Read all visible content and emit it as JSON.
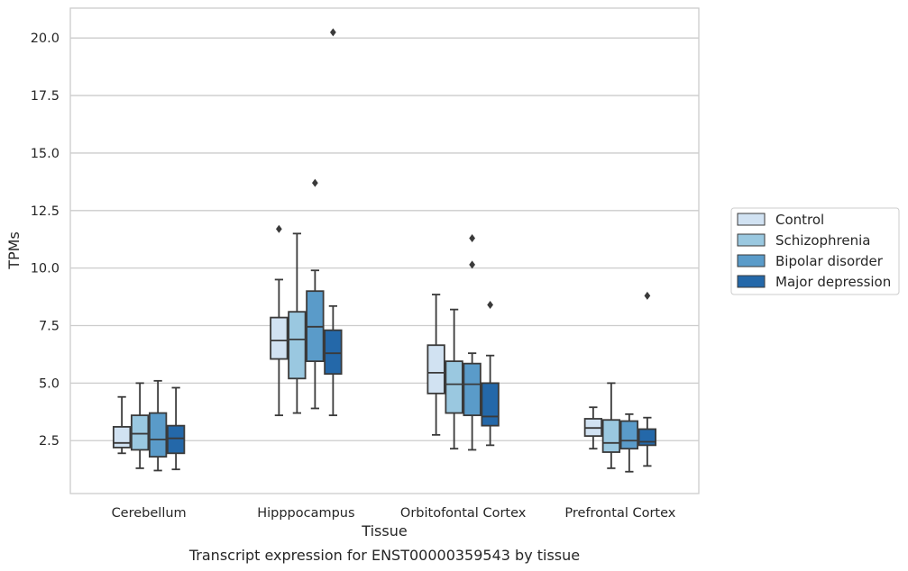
{
  "chart_data": {
    "type": "box",
    "title": "",
    "caption": "Transcript expression for ENST00000359543 by tissue",
    "xlabel": "Tissue",
    "ylabel": "TPMs",
    "ylim": [
      0.2,
      21.3
    ],
    "yticks": [
      2.5,
      5.0,
      7.5,
      10.0,
      12.5,
      15.0,
      17.5,
      20.0
    ],
    "ytick_labels": [
      "2.5",
      "5.0",
      "7.5",
      "10.0",
      "12.5",
      "15.0",
      "17.5",
      "20.0"
    ],
    "grid": "horizontal",
    "legend_position": "right",
    "categories": [
      "Cerebellum",
      "Hipppocampus",
      "Orbitofontal Cortex",
      "Prefrontal Cortex"
    ],
    "series": [
      {
        "name": "Control",
        "color": "#d1e2f2",
        "boxes": [
          {
            "whisker_low": 1.95,
            "q1": 2.2,
            "median": 2.4,
            "q3": 3.1,
            "whisker_high": 4.4,
            "outliers": []
          },
          {
            "whisker_low": 3.6,
            "q1": 6.05,
            "median": 6.85,
            "q3": 7.85,
            "whisker_high": 9.5,
            "outliers": [
              11.7
            ]
          },
          {
            "whisker_low": 2.75,
            "q1": 4.55,
            "median": 5.45,
            "q3": 6.65,
            "whisker_high": 8.85,
            "outliers": []
          },
          {
            "whisker_low": 2.15,
            "q1": 2.7,
            "median": 3.05,
            "q3": 3.45,
            "whisker_high": 3.95,
            "outliers": []
          }
        ]
      },
      {
        "name": "Schizophrenia",
        "color": "#9ac8e0",
        "boxes": [
          {
            "whisker_low": 1.3,
            "q1": 2.1,
            "median": 2.8,
            "q3": 3.6,
            "whisker_high": 5.0,
            "outliers": []
          },
          {
            "whisker_low": 3.7,
            "q1": 5.2,
            "median": 6.9,
            "q3": 8.1,
            "whisker_high": 11.5,
            "outliers": []
          },
          {
            "whisker_low": 2.15,
            "q1": 3.7,
            "median": 4.95,
            "q3": 5.95,
            "whisker_high": 8.2,
            "outliers": []
          },
          {
            "whisker_low": 1.3,
            "q1": 2.0,
            "median": 2.4,
            "q3": 3.4,
            "whisker_high": 5.0,
            "outliers": []
          }
        ]
      },
      {
        "name": "Bipolar disorder",
        "color": "#5a9bc9",
        "boxes": [
          {
            "whisker_low": 1.2,
            "q1": 1.8,
            "median": 2.55,
            "q3": 3.7,
            "whisker_high": 5.1,
            "outliers": []
          },
          {
            "whisker_low": 3.9,
            "q1": 5.95,
            "median": 7.45,
            "q3": 9.0,
            "whisker_high": 9.9,
            "outliers": [
              13.7
            ]
          },
          {
            "whisker_low": 2.1,
            "q1": 3.6,
            "median": 4.95,
            "q3": 5.85,
            "whisker_high": 6.3,
            "outliers": [
              11.3,
              10.15
            ]
          },
          {
            "whisker_low": 1.15,
            "q1": 2.15,
            "median": 2.5,
            "q3": 3.35,
            "whisker_high": 3.65,
            "outliers": []
          }
        ]
      },
      {
        "name": "Major depression",
        "color": "#2468a9",
        "boxes": [
          {
            "whisker_low": 1.25,
            "q1": 1.95,
            "median": 2.6,
            "q3": 3.15,
            "whisker_high": 4.8,
            "outliers": []
          },
          {
            "whisker_low": 3.6,
            "q1": 5.4,
            "median": 6.3,
            "q3": 7.3,
            "whisker_high": 8.35,
            "outliers": [
              20.25
            ]
          },
          {
            "whisker_low": 2.3,
            "q1": 3.15,
            "median": 3.55,
            "q3": 5.0,
            "whisker_high": 6.2,
            "outliers": [
              8.4
            ]
          },
          {
            "whisker_low": 1.4,
            "q1": 2.3,
            "median": 2.45,
            "q3": 3.0,
            "whisker_high": 3.5,
            "outliers": [
              8.8
            ]
          }
        ]
      }
    ]
  }
}
